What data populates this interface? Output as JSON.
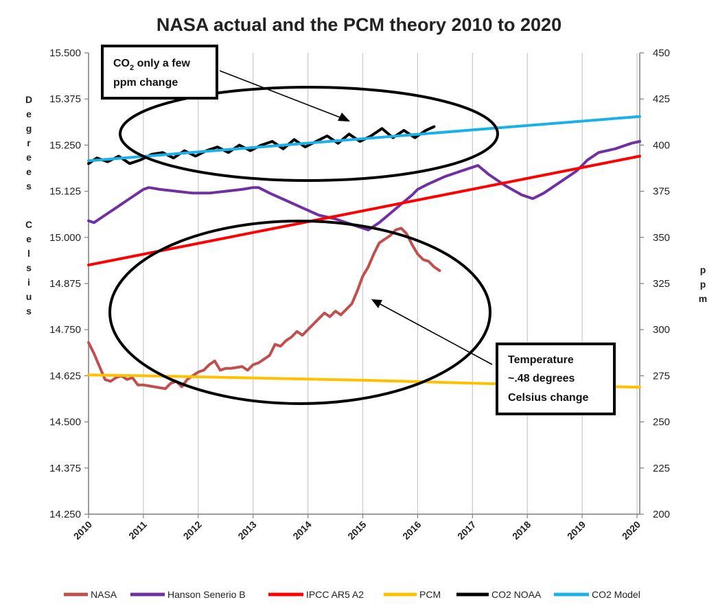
{
  "chart_data": {
    "type": "line",
    "title": "NASA actual and the PCM theory 2010 to 2020",
    "ylabel": "Degrees Celsius",
    "y2label": "ppm",
    "x_ticks": [
      "2010",
      "2011",
      "2012",
      "2013",
      "2014",
      "2015",
      "2016",
      "2017",
      "2018",
      "2019",
      "2020"
    ],
    "xlim": [
      2010,
      2020.05
    ],
    "ylim": [
      14.25,
      15.5
    ],
    "y_ticks": [
      "15.500",
      "15.375",
      "15.250",
      "15.125",
      "15.000",
      "14.875",
      "14.750",
      "14.625",
      "14.500",
      "14.375",
      "14.250"
    ],
    "y2lim": [
      200,
      450
    ],
    "y2_ticks": [
      "450",
      "425",
      "400",
      "375",
      "350",
      "325",
      "300",
      "275",
      "250",
      "225",
      "200"
    ],
    "grid": "vertical",
    "legend_position": "bottom",
    "series": [
      {
        "name": "NASA",
        "axis": "left",
        "color": "#c0504d",
        "x": [
          2010.0,
          2010.1,
          2010.2,
          2010.3,
          2010.4,
          2010.5,
          2010.6,
          2010.7,
          2010.8,
          2010.9,
          2011.0,
          2011.2,
          2011.4,
          2011.5,
          2011.6,
          2011.7,
          2011.8,
          2011.9,
          2012.0,
          2012.1,
          2012.2,
          2012.3,
          2012.4,
          2012.5,
          2012.6,
          2012.8,
          2012.9,
          2013.0,
          2013.1,
          2013.2,
          2013.3,
          2013.4,
          2013.5,
          2013.6,
          2013.7,
          2013.8,
          2013.9,
          2014.0,
          2014.1,
          2014.2,
          2014.3,
          2014.4,
          2014.5,
          2014.6,
          2014.7,
          2014.8,
          2014.9,
          2015.0,
          2015.1,
          2015.2,
          2015.3,
          2015.4,
          2015.5,
          2015.6,
          2015.7,
          2015.8,
          2015.9,
          2016.0,
          2016.1,
          2016.2,
          2016.3,
          2016.4
        ],
        "y": [
          14.715,
          14.685,
          14.65,
          14.615,
          14.61,
          14.62,
          14.625,
          14.615,
          14.62,
          14.6,
          14.6,
          14.595,
          14.59,
          14.605,
          14.61,
          14.595,
          14.615,
          14.625,
          14.635,
          14.64,
          14.655,
          14.665,
          14.64,
          14.645,
          14.645,
          14.65,
          14.64,
          14.655,
          14.66,
          14.67,
          14.68,
          14.71,
          14.705,
          14.72,
          14.73,
          14.745,
          14.735,
          14.75,
          14.765,
          14.78,
          14.795,
          14.785,
          14.8,
          14.79,
          14.805,
          14.82,
          14.855,
          14.895,
          14.92,
          14.955,
          14.985,
          14.995,
          15.005,
          15.02,
          15.025,
          15.01,
          14.98,
          14.955,
          14.94,
          14.935,
          14.92,
          14.91
        ]
      },
      {
        "name": "Hanson Senerio B",
        "axis": "left",
        "color": "#7030a0",
        "x": [
          2010.0,
          2010.1,
          2010.3,
          2010.5,
          2010.7,
          2010.9,
          2011.0,
          2011.1,
          2011.3,
          2011.6,
          2011.9,
          2012.2,
          2012.5,
          2012.8,
          2013.0,
          2013.1,
          2013.3,
          2013.6,
          2013.9,
          2014.2,
          2014.5,
          2014.8,
          2015.0,
          2015.1,
          2015.3,
          2015.5,
          2015.7,
          2015.9,
          2016.0,
          2016.2,
          2016.5,
          2016.8,
          2017.0,
          2017.1,
          2017.3,
          2017.6,
          2017.9,
          2018.1,
          2018.3,
          2018.6,
          2018.9,
          2019.1,
          2019.3,
          2019.6,
          2019.9,
          2020.05
        ],
        "y": [
          15.045,
          15.04,
          15.06,
          15.08,
          15.1,
          15.12,
          15.13,
          15.135,
          15.13,
          15.125,
          15.12,
          15.12,
          15.125,
          15.13,
          15.135,
          15.135,
          15.12,
          15.1,
          15.08,
          15.06,
          15.05,
          15.035,
          15.025,
          15.02,
          15.04,
          15.065,
          15.09,
          15.115,
          15.13,
          15.145,
          15.165,
          15.18,
          15.19,
          15.195,
          15.17,
          15.14,
          15.115,
          15.105,
          15.12,
          15.15,
          15.18,
          15.21,
          15.23,
          15.24,
          15.255,
          15.26
        ]
      },
      {
        "name": "IPCC AR5 A2",
        "axis": "left",
        "color": "#ff0000",
        "x": [
          2010.0,
          2020.05
        ],
        "y": [
          14.925,
          15.22
        ]
      },
      {
        "name": "PCM",
        "axis": "left",
        "color": "#ffc000",
        "x": [
          2010.0,
          2011.0,
          2012.0,
          2013.0,
          2014.0,
          2015.0,
          2016.0,
          2017.0,
          2018.0,
          2019.0,
          2020.05
        ],
        "y": [
          14.627,
          14.625,
          14.622,
          14.619,
          14.616,
          14.613,
          14.609,
          14.605,
          14.601,
          14.597,
          14.594
        ]
      },
      {
        "name": "CO2 NOAA",
        "axis": "right",
        "color": "#000000",
        "x": [
          2010.0,
          2010.15,
          2010.35,
          2010.55,
          2010.75,
          2010.95,
          2011.15,
          2011.35,
          2011.55,
          2011.75,
          2011.95,
          2012.15,
          2012.35,
          2012.55,
          2012.75,
          2012.95,
          2013.15,
          2013.35,
          2013.55,
          2013.75,
          2013.95,
          2014.15,
          2014.35,
          2014.55,
          2014.75,
          2014.95,
          2015.15,
          2015.35,
          2015.55,
          2015.75,
          2015.95,
          2016.15,
          2016.3
        ],
        "y": [
          390,
          393,
          391,
          394,
          390,
          392,
          395,
          396,
          393,
          397,
          394,
          397,
          399,
          396,
          400,
          397,
          400,
          402,
          398,
          403,
          399,
          402,
          405,
          401,
          406,
          402,
          405,
          409,
          404,
          408,
          404,
          408,
          410
        ]
      },
      {
        "name": "CO2 Model",
        "axis": "right",
        "color": "#1ab0e8",
        "x": [
          2010.0,
          2020.05
        ],
        "y": [
          391.5,
          415.5
        ]
      }
    ],
    "annotations": {
      "co2_box": [
        "CO",
        "2",
        " only a few",
        "ppm change"
      ],
      "temp_box": [
        "Temperature",
        "~.48 degrees",
        "Celsius change"
      ]
    }
  }
}
